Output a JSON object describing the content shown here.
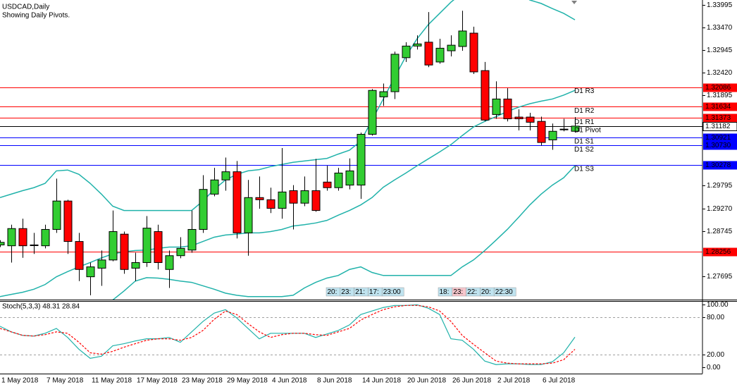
{
  "chart_data": [
    {
      "type": "candlestick",
      "title": "USDCAD,Daily",
      "subtitle": "Showing Daily Pivots.",
      "categories": [
        "1 May 2018",
        null,
        null,
        null,
        "7 May 2018",
        null,
        null,
        null,
        "11 May 2018",
        null,
        null,
        null,
        "17 May 2018",
        null,
        null,
        null,
        "23 May 2018",
        null,
        null,
        null,
        "29 May 2018",
        null,
        null,
        null,
        "4 Jun 2018",
        null,
        null,
        null,
        "8 Jun 2018",
        null,
        null,
        null,
        "14 Jun 2018",
        null,
        null,
        null,
        "20 Jun 2018",
        null,
        null,
        null,
        "26 Jun 2018",
        null,
        null,
        null,
        "2 Jul 2018",
        null,
        null,
        null,
        "6 Jul 2018",
        null,
        null,
        null
      ],
      "open": [
        1.2842,
        1.284,
        1.288,
        1.2842,
        1.284,
        1.2878,
        1.2944,
        1.285,
        1.2768,
        1.2788,
        1.2807,
        1.2867,
        1.2788,
        1.2801,
        1.2873,
        1.2785,
        1.2817,
        1.283,
        1.2878,
        1.296,
        1.2993,
        1.3012,
        1.287,
        1.2952,
        1.2947,
        1.2927,
        1.2968,
        1.2939,
        1.2968,
        1.2988,
        1.2975,
        1.2981,
        1.2981,
        1.3099,
        1.3186,
        1.3198,
        1.3277,
        1.3304,
        1.3313,
        1.3267,
        1.3293,
        1.3303,
        1.3334,
        1.3247,
        1.3145,
        1.3181,
        1.3139,
        1.3139,
        1.3129,
        1.3086,
        1.3111,
        1.3106
      ],
      "high": [
        1.2853,
        1.2889,
        1.2903,
        1.287,
        1.2889,
        1.2996,
        1.2947,
        1.287,
        1.2801,
        1.2829,
        1.2922,
        1.2873,
        1.2824,
        1.2909,
        1.2889,
        1.2829,
        1.286,
        1.2922,
        1.3004,
        1.3021,
        1.3045,
        1.3037,
        1.2993,
        1.3001,
        1.2975,
        1.3067,
        1.2981,
        1.3001,
        1.3042,
        1.3026,
        1.3021,
        1.3043,
        1.3103,
        1.3204,
        1.3217,
        1.3291,
        1.3313,
        1.3329,
        1.3383,
        1.3321,
        1.3329,
        1.3386,
        1.3349,
        1.3267,
        1.3222,
        1.3206,
        1.3157,
        1.3149,
        1.314,
        1.3124,
        1.3135,
        1.3139
      ],
      "low": [
        1.2837,
        1.2801,
        1.2812,
        1.2821,
        1.2834,
        1.287,
        1.2821,
        1.2758,
        1.2725,
        1.2747,
        1.2804,
        1.2775,
        1.2758,
        1.2791,
        1.2785,
        1.2742,
        1.2811,
        1.2824,
        1.287,
        1.2955,
        1.2968,
        1.2857,
        1.2817,
        1.2926,
        1.2916,
        1.2903,
        1.2878,
        1.2932,
        1.2919,
        1.2968,
        1.2968,
        1.2971,
        1.2949,
        1.3096,
        1.3165,
        1.3181,
        1.3267,
        1.3296,
        1.3255,
        1.3263,
        1.328,
        1.3293,
        1.3239,
        1.3129,
        1.3135,
        1.3129,
        1.3108,
        1.3108,
        1.3073,
        1.3063,
        1.3106,
        1.3103
      ],
      "close": [
        1.2848,
        1.288,
        1.284,
        1.2842,
        1.2878,
        1.2944,
        1.285,
        1.2785,
        1.2791,
        1.2807,
        1.2873,
        1.2785,
        1.2801,
        1.2881,
        1.2801,
        1.2817,
        1.2834,
        1.2878,
        1.2971,
        1.2993,
        1.3012,
        1.287,
        1.2952,
        1.2947,
        1.2927,
        1.2965,
        1.2939,
        1.2968,
        1.2922,
        1.2975,
        1.3009,
        1.3014,
        1.3099,
        1.3201,
        1.3198,
        1.3285,
        1.3304,
        1.3309,
        1.326,
        1.3299,
        1.3306,
        1.3339,
        1.3244,
        1.3132,
        1.3181,
        1.3135,
        1.3135,
        1.3127,
        1.308,
        1.3106,
        1.3111,
        1.3118
      ],
      "up_color": "#32cd32",
      "down_color": "#ff0000",
      "ylim": [
        1.2715,
        1.3411
      ],
      "yticks": [
        1.33995,
        {
          "value": 1.3347,
          "label": "1.33470"
        },
        1.32945,
        {
          "value": 1.3242,
          "label": "1.32420"
        },
        1.31895,
        1.29795,
        {
          "value": 1.2927,
          "label": "1.29270"
        },
        1.28745,
        1.27695
      ],
      "overlays": [
        {
          "color": "#20b2aa",
          "values": [
            1.2952,
            1.296,
            1.2968,
            1.2975,
            1.2985,
            1.3014,
            1.3016,
            1.3006,
            1.2985,
            1.296,
            1.2932,
            1.2922,
            1.2922,
            1.2922,
            1.2922,
            1.2922,
            1.2922,
            1.2922,
            1.2944,
            1.2971,
            1.2993,
            1.3006,
            1.3014,
            1.3017,
            1.3024,
            1.3029,
            1.3034,
            1.3037,
            1.304,
            1.3043,
            1.3053,
            1.3062,
            1.3083,
            1.3132,
            1.3181,
            1.3231,
            1.328,
            1.3321,
            1.3354,
            1.338,
            1.3406,
            1.3427,
            1.3444,
            1.3452,
            1.3452,
            1.3444,
            1.3427,
            1.3411,
            1.3403,
            1.3391,
            1.338,
            1.3365
          ]
        },
        {
          "color": "#20b2aa",
          "values": [
            1.2722,
            1.2727,
            1.2732,
            1.2739,
            1.275,
            1.2768,
            1.278,
            1.2791,
            1.2801,
            1.2812,
            1.2821,
            1.2826,
            1.2829,
            1.283,
            1.2834,
            1.2837,
            1.2837,
            1.284,
            1.285,
            1.286,
            1.2865,
            1.2867,
            1.287,
            1.287,
            1.2873,
            1.2878,
            1.2886,
            1.2889,
            1.2893,
            1.2899,
            1.2911,
            1.2922,
            1.2935,
            1.2952,
            1.2976,
            1.2993,
            1.3009,
            1.3026,
            1.3042,
            1.3058,
            1.3075,
            1.3096,
            1.3116,
            1.3129,
            1.314,
            1.3152,
            1.3162,
            1.317,
            1.3176,
            1.3181,
            1.319,
            1.3201
          ]
        },
        {
          "color": "#20b2aa",
          "values": [
            1.2681,
            1.2681,
            1.2683,
            1.2686,
            1.2689,
            1.2693,
            1.2696,
            1.2703,
            1.2706,
            1.2709,
            1.2714,
            1.2735,
            1.2758,
            1.2766,
            1.2765,
            1.2762,
            1.2758,
            1.2755,
            1.2747,
            1.2739,
            1.273,
            1.2725,
            1.2722,
            1.2722,
            1.2722,
            1.2722,
            1.2725,
            1.2742,
            1.2755,
            1.2765,
            1.2771,
            1.2785,
            1.2791,
            1.2778,
            1.2771,
            1.2771,
            1.2771,
            1.2771,
            1.2771,
            1.2771,
            1.2771,
            1.2791,
            1.2807,
            1.2829,
            1.2853,
            1.2878,
            1.2906,
            1.2935,
            1.296,
            1.2981,
            1.2998,
            1.3026
          ]
        }
      ],
      "levels": [
        {
          "name": "D1 R3",
          "price": 1.32086,
          "color": "#ff0000"
        },
        {
          "name": "D1 R2",
          "price": 1.31634,
          "color": "#ff0000"
        },
        {
          "name": "D1 R1",
          "price": 1.31373,
          "color": "#ff0000"
        },
        {
          "name": "D1 Pivot",
          "price": 1.31182,
          "color": "#000000"
        },
        {
          "name": "D1 S1",
          "price": 1.30921,
          "color": "#0000ff"
        },
        {
          "name": "D1 S2",
          "price": {
            "value": 1.3073,
            "label": "1.30730"
          },
          "color": "#0000ff"
        },
        {
          "name": "D1 S3",
          "price": 1.30278,
          "color": "#0000ff"
        },
        {
          "price": 1.28256,
          "color": "#ff0000"
        }
      ],
      "session_labels": [
        [
          "20:",
          "23:",
          "21:",
          "17:",
          "23:00"
        ],
        [
          "18:",
          "23:",
          "22:",
          "20:",
          "22:30"
        ]
      ]
    },
    {
      "type": "line",
      "title": "Stoch(5,3,3) 48.31 28.84",
      "ylim": [
        -10,
        106
      ],
      "yticks": [
        {
          "value": 100,
          "label": "100.00"
        },
        {
          "value": 80,
          "label": "80.00"
        },
        {
          "value": 20,
          "label": "20.00"
        },
        {
          "value": 0,
          "label": "0.00"
        }
      ],
      "levels": [
        80,
        20
      ],
      "series": [
        {
          "color": "#20b2aa",
          "values": [
            65.6,
            56.7,
            51.1,
            50.0,
            54.4,
            62.2,
            47.8,
            28.9,
            14.4,
            17.8,
            34.4,
            37.8,
            42.2,
            45.6,
            45.6,
            47.8,
            40.0,
            56.7,
            73.3,
            86.7,
            92.2,
            78.9,
            62.2,
            45.6,
            54.4,
            54.4,
            54.4,
            54.4,
            47.8,
            53.3,
            58.9,
            67.8,
            84.4,
            90.0,
            95.6,
            98.9,
            98.9,
            100.0,
            94.4,
            84.4,
            45.6,
            43.3,
            28.9,
            10.0,
            4.4,
            5.6,
            5.6,
            4.4,
            4.4,
            8.9,
            23.3,
            48.31
          ]
        },
        {
          "color": "#ff0000",
          "dashed": true,
          "values": [
            62.2,
            56.7,
            51.1,
            50.0,
            52.2,
            56.7,
            54.4,
            40.0,
            23.3,
            21.1,
            25.6,
            32.2,
            37.8,
            43.3,
            45.6,
            45.6,
            43.3,
            47.8,
            58.9,
            76.7,
            90.0,
            84.4,
            70.0,
            56.7,
            47.8,
            52.2,
            54.4,
            54.4,
            52.2,
            51.1,
            56.7,
            62.2,
            75.6,
            84.4,
            92.2,
            96.7,
            98.9,
            98.9,
            96.7,
            90.0,
            73.3,
            51.1,
            36.7,
            23.3,
            10.0,
            6.7,
            5.6,
            5.6,
            5.6,
            6.7,
            12.2,
            28.84
          ]
        }
      ]
    }
  ]
}
